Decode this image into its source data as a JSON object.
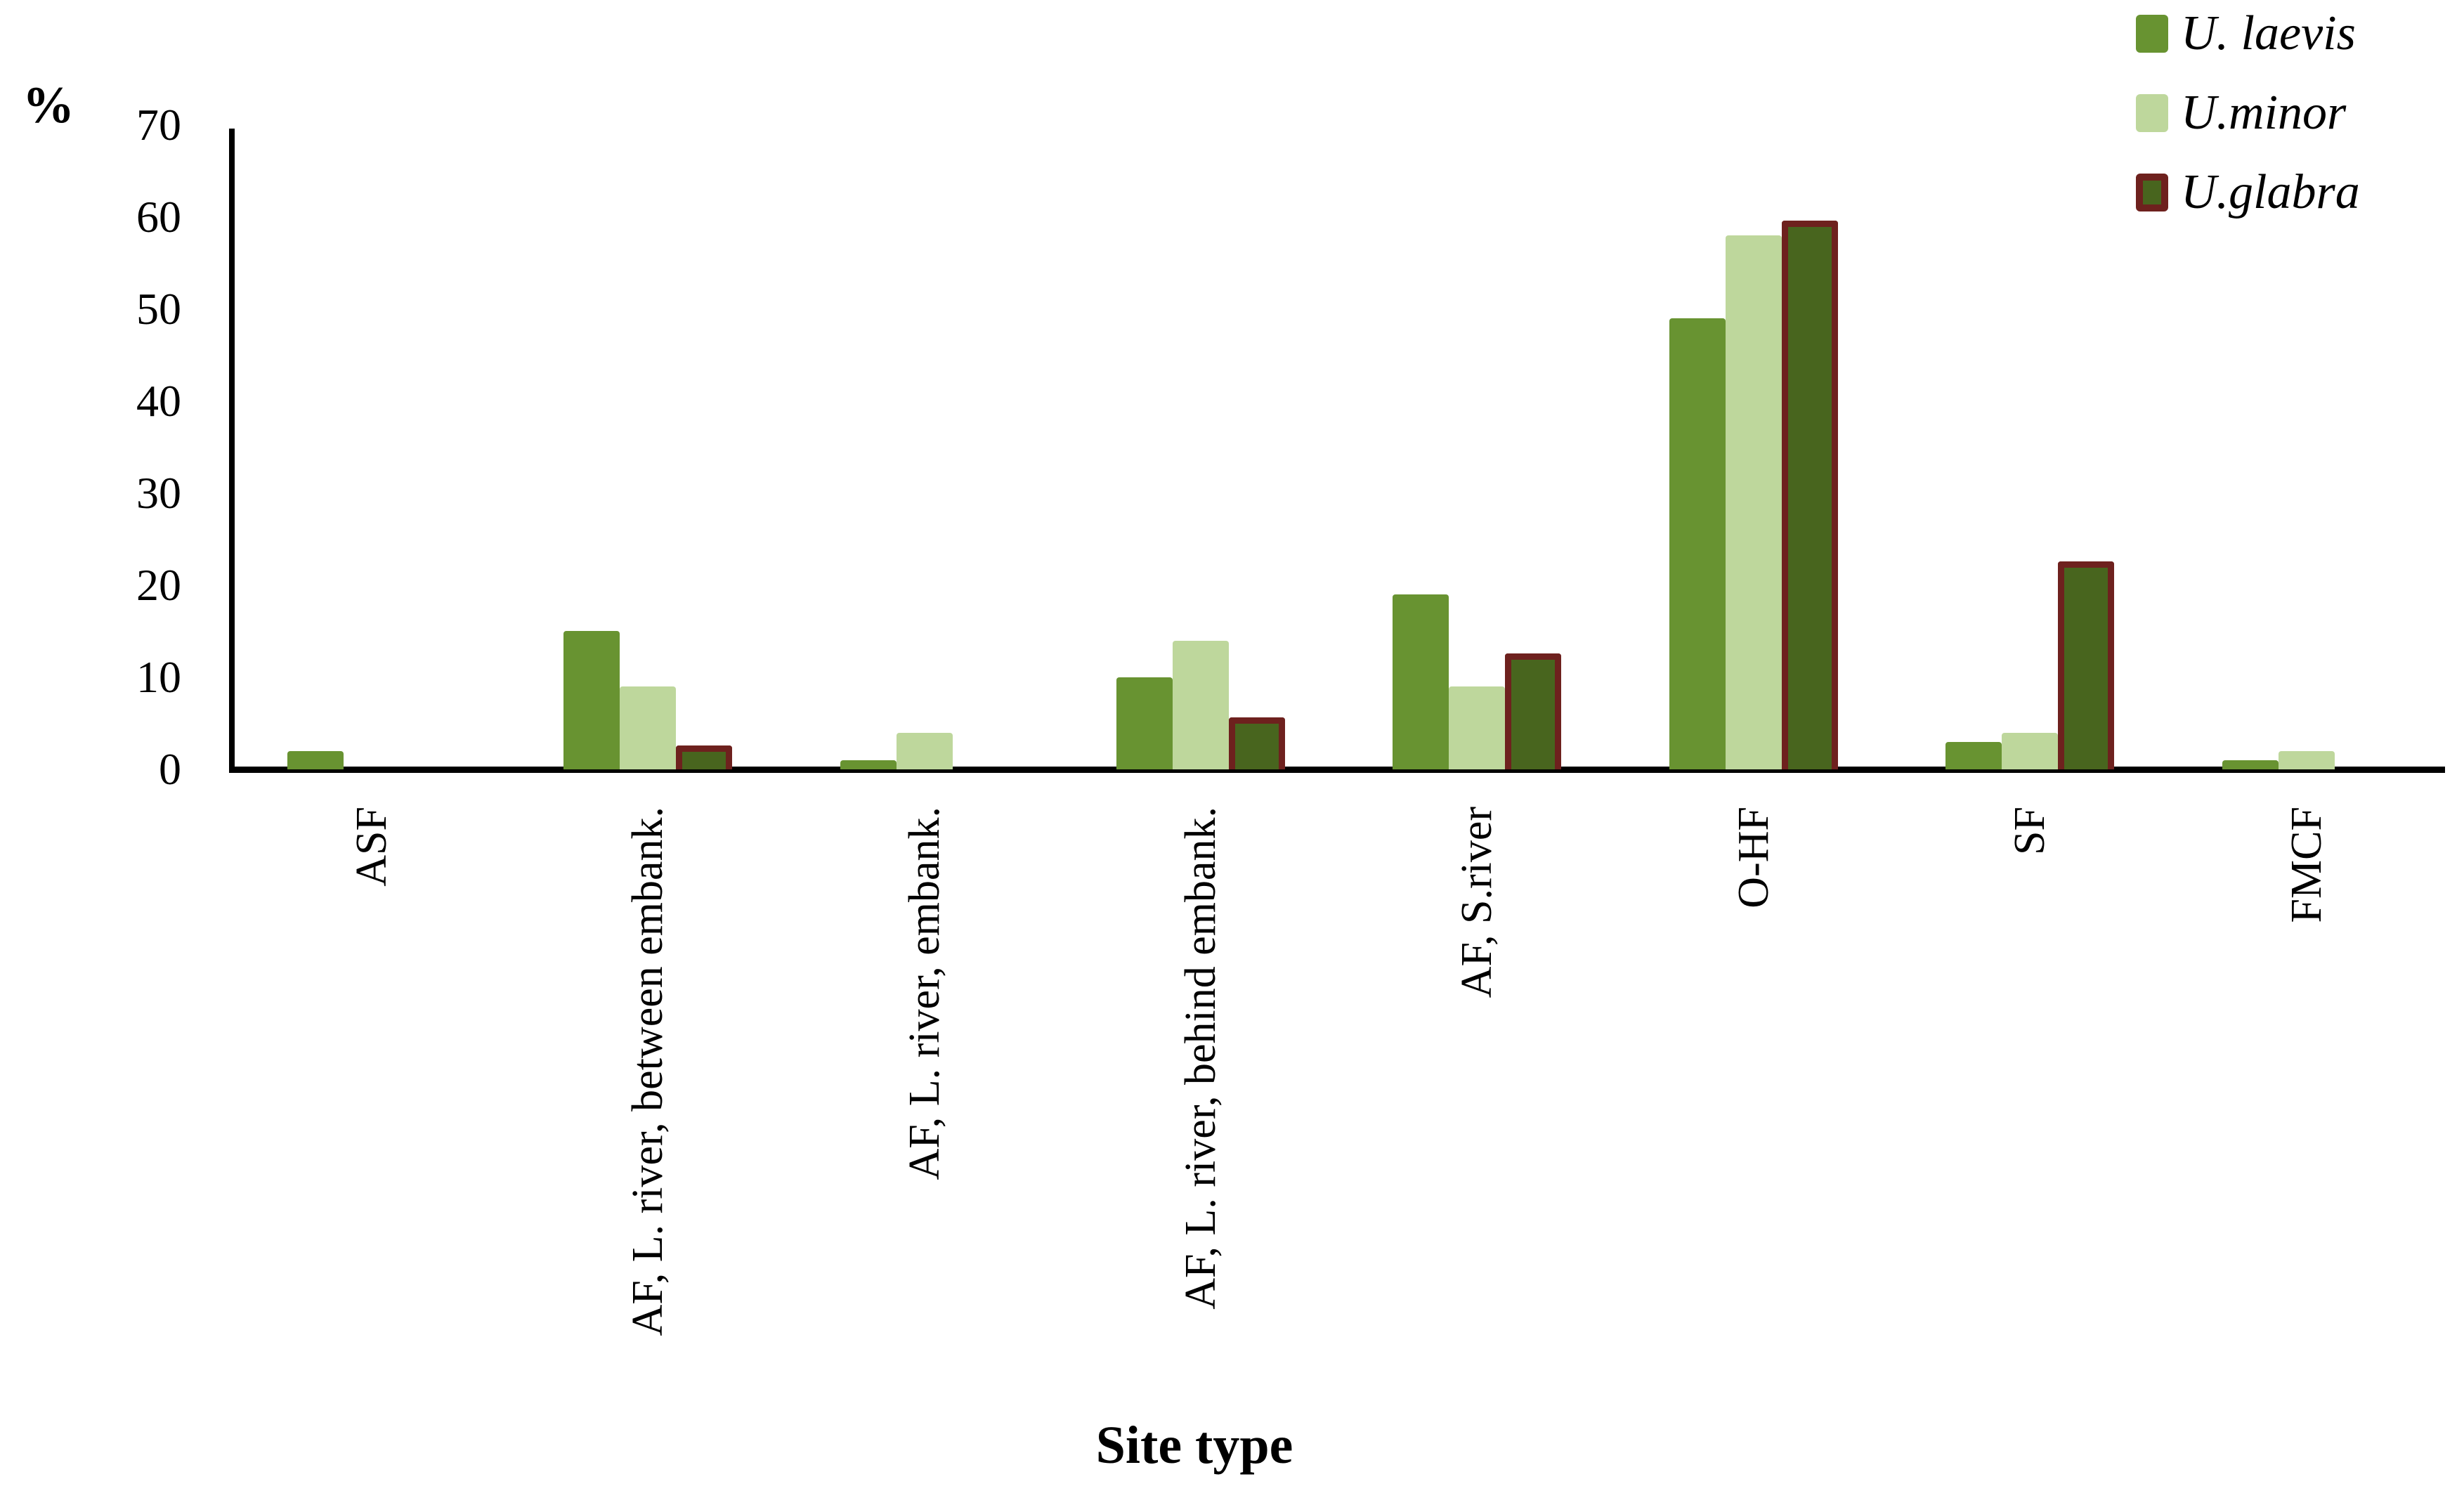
{
  "figure": {
    "y_axis_title": "%",
    "x_axis_title": "Site type",
    "background": "#ffffff"
  },
  "legend": {
    "position": "top-right",
    "items": [
      {
        "label": "U. laevis",
        "color": "#689331",
        "border_color": null
      },
      {
        "label": "U.minor",
        "color": "#bed79c",
        "border_color": null
      },
      {
        "label": "U.glabra",
        "color": "#48651e",
        "border_color": "#6e211e"
      }
    ]
  },
  "chart_data": {
    "type": "bar",
    "title": "",
    "xlabel": "Site type",
    "ylabel": "%",
    "ylim": [
      0,
      70
    ],
    "yticks": [
      0,
      10,
      20,
      30,
      40,
      50,
      60,
      70
    ],
    "grid": false,
    "legend_position": "top-right",
    "categories": [
      "ASF",
      "AF, L. river, between embank.",
      "AF, L. river, embank.",
      "AF, L. river, behind embank.",
      "AF, S.river",
      "O-HF",
      "SF",
      "FMCF"
    ],
    "series": [
      {
        "name": "U. laevis",
        "color": "#689331",
        "border_color": null,
        "values": [
          2,
          15,
          1,
          10,
          19,
          49,
          3,
          1
        ]
      },
      {
        "name": "U.minor",
        "color": "#bed79c",
        "border_color": null,
        "values": [
          0,
          9,
          4,
          14,
          9,
          58,
          4,
          2
        ]
      },
      {
        "name": "U.glabra",
        "color": "#48651e",
        "border_color": "#6e211e",
        "values": [
          0,
          2,
          0,
          5,
          12,
          59,
          22,
          0
        ]
      }
    ]
  }
}
